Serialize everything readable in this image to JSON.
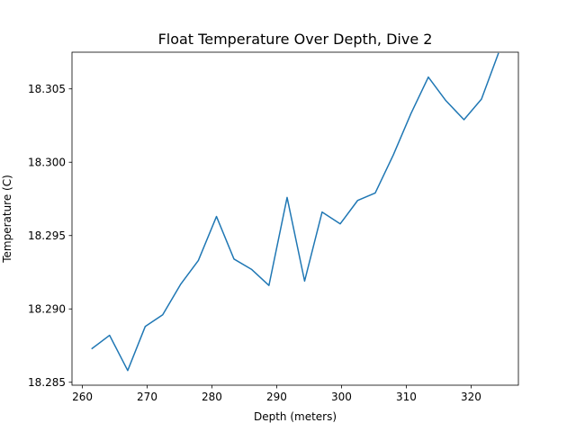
{
  "chart_data": {
    "type": "line",
    "title": "Float Temperature Over Depth, Dive 2",
    "xlabel": "Depth (meters)",
    "ylabel": "Temperature (C)",
    "xlim": [
      258.4,
      327.3
    ],
    "ylim": [
      18.2848,
      18.3075
    ],
    "grid": false,
    "xticks": [
      260,
      270,
      280,
      290,
      300,
      310,
      320
    ],
    "xtick_labels": [
      "260",
      "270",
      "280",
      "290",
      "300",
      "310",
      "320"
    ],
    "yticks": [
      18.285,
      18.29,
      18.295,
      18.3,
      18.305
    ],
    "ytick_labels": [
      "18.285",
      "18.290",
      "18.295",
      "18.300",
      "18.305"
    ],
    "series": [
      {
        "color": "#1f77b4",
        "x": [
          261.5,
          264.2,
          267.0,
          269.7,
          272.4,
          275.2,
          277.9,
          280.7,
          283.4,
          286.1,
          288.8,
          291.6,
          294.3,
          297.0,
          299.8,
          302.5,
          305.2,
          308.0,
          310.7,
          313.4,
          316.1,
          318.9,
          321.6,
          324.2
        ],
        "y": [
          18.2873,
          18.2882,
          18.2858,
          18.2888,
          18.2896,
          18.2917,
          18.2933,
          18.2963,
          18.2934,
          18.2927,
          18.2916,
          18.2976,
          18.2919,
          18.2966,
          18.2958,
          18.2974,
          18.2979,
          18.3005,
          18.3033,
          18.3058,
          18.3042,
          18.3029,
          18.3043,
          18.3074
        ]
      }
    ]
  }
}
